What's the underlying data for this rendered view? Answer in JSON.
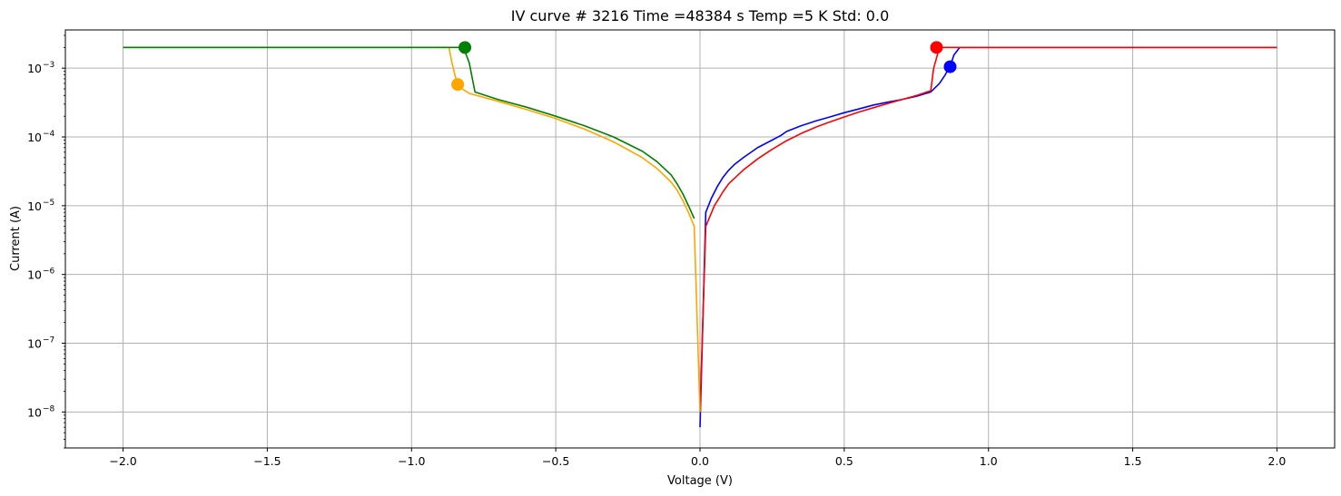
{
  "chart_data": {
    "type": "line",
    "title": "IV curve # 3216  Time =48384 s  Temp =5 K Std: 0.0",
    "xlabel": "Voltage (V)",
    "ylabel": "Current (A)",
    "xlim": [
      -2.2,
      2.2
    ],
    "ylim": [
      3e-09,
      0.0036
    ],
    "yscale": "log",
    "grid": true,
    "x_ticks": [
      -2.0,
      -1.5,
      -1.0,
      -0.5,
      0.0,
      0.5,
      1.0,
      1.5,
      2.0
    ],
    "x_tick_labels": [
      "−2.0",
      "−1.5",
      "−1.0",
      "−0.5",
      "0.0",
      "0.5",
      "1.0",
      "1.5",
      "2.0"
    ],
    "y_ticks": [
      {
        "value": 1e-08,
        "base": "10",
        "exp": "−8"
      },
      {
        "value": 1e-07,
        "base": "10",
        "exp": "−7"
      },
      {
        "value": 1e-06,
        "base": "10",
        "exp": "−6"
      },
      {
        "value": 1e-05,
        "base": "10",
        "exp": "−5"
      },
      {
        "value": 0.0001,
        "base": "10",
        "exp": "−4"
      },
      {
        "value": 0.001,
        "base": "10",
        "exp": "−3"
      }
    ],
    "series": [
      {
        "color": "#0000ff",
        "x": [
          0.0,
          0.02,
          0.04,
          0.06,
          0.08,
          0.1,
          0.12,
          0.15,
          0.2,
          0.25,
          0.28,
          0.3,
          0.35,
          0.4,
          0.45,
          0.5,
          0.55,
          0.6,
          0.65,
          0.7,
          0.75,
          0.8,
          0.83,
          0.85,
          0.87,
          0.88,
          0.9,
          1.0,
          1.5,
          2.0
        ],
        "y": [
          6e-09,
          8e-06,
          1.3e-05,
          1.9e-05,
          2.6e-05,
          3.3e-05,
          4e-05,
          5e-05,
          7e-05,
          9e-05,
          0.000105,
          0.00012,
          0.000145,
          0.00017,
          0.000195,
          0.000225,
          0.000255,
          0.00029,
          0.00032,
          0.00035,
          0.00039,
          0.00045,
          0.0006,
          0.0008,
          0.00115,
          0.00155,
          0.002,
          0.002,
          0.002,
          0.002
        ]
      },
      {
        "color": "#ff0000",
        "x": [
          0.0,
          0.02,
          0.05,
          0.08,
          0.1,
          0.15,
          0.2,
          0.25,
          0.3,
          0.35,
          0.4,
          0.45,
          0.5,
          0.55,
          0.6,
          0.65,
          0.7,
          0.75,
          0.8,
          0.81,
          0.83,
          0.9,
          1.0,
          1.5,
          2.0
        ],
        "y": [
          1e-08,
          5e-06,
          1e-05,
          1.6e-05,
          2.1e-05,
          3.3e-05,
          4.8e-05,
          6.6e-05,
          8.8e-05,
          0.000112,
          0.000138,
          0.000165,
          0.000195,
          0.00023,
          0.000265,
          0.000305,
          0.00035,
          0.0004,
          0.00047,
          0.001,
          0.002,
          0.002,
          0.002,
          0.002,
          0.002
        ]
      },
      {
        "color": "#ffa500",
        "x": [
          -2.0,
          -1.5,
          -1.0,
          -0.87,
          -0.86,
          -0.84,
          -0.8,
          -0.7,
          -0.6,
          -0.5,
          -0.4,
          -0.3,
          -0.2,
          -0.15,
          -0.1,
          -0.08,
          -0.06,
          -0.04,
          -0.02,
          0.0
        ],
        "y": [
          0.002,
          0.002,
          0.002,
          0.002,
          0.0012,
          0.00055,
          0.00043,
          0.00033,
          0.00025,
          0.000185,
          0.00013,
          8.5e-05,
          5e-05,
          3.5e-05,
          2.2e-05,
          1.7e-05,
          1.2e-05,
          8e-06,
          5e-06,
          1e-08
        ]
      },
      {
        "color": "#008000",
        "x": [
          -2.0,
          -1.5,
          -1.0,
          -0.84,
          -0.82,
          -0.8,
          -0.78,
          -0.7,
          -0.6,
          -0.5,
          -0.4,
          -0.3,
          -0.2,
          -0.15,
          -0.1,
          -0.08,
          -0.06,
          -0.04,
          -0.02
        ],
        "y": [
          0.002,
          0.002,
          0.002,
          0.002,
          0.002,
          0.0012,
          0.00045,
          0.00035,
          0.00027,
          0.0002,
          0.000145,
          0.0001,
          6.2e-05,
          4.4e-05,
          2.8e-05,
          2.1e-05,
          1.5e-05,
          1e-05,
          6.5e-06
        ]
      }
    ],
    "markers": [
      {
        "color": "#ff0000",
        "x": 0.82,
        "y": 0.002
      },
      {
        "color": "#0000ff",
        "x": 0.867,
        "y": 0.00105
      },
      {
        "color": "#ffa500",
        "x": -0.84,
        "y": 0.00058
      },
      {
        "color": "#008000",
        "x": -0.815,
        "y": 0.002
      }
    ],
    "colors": {
      "grid": "#b0b0b0",
      "axes": "#000000",
      "background": "#ffffff"
    }
  }
}
